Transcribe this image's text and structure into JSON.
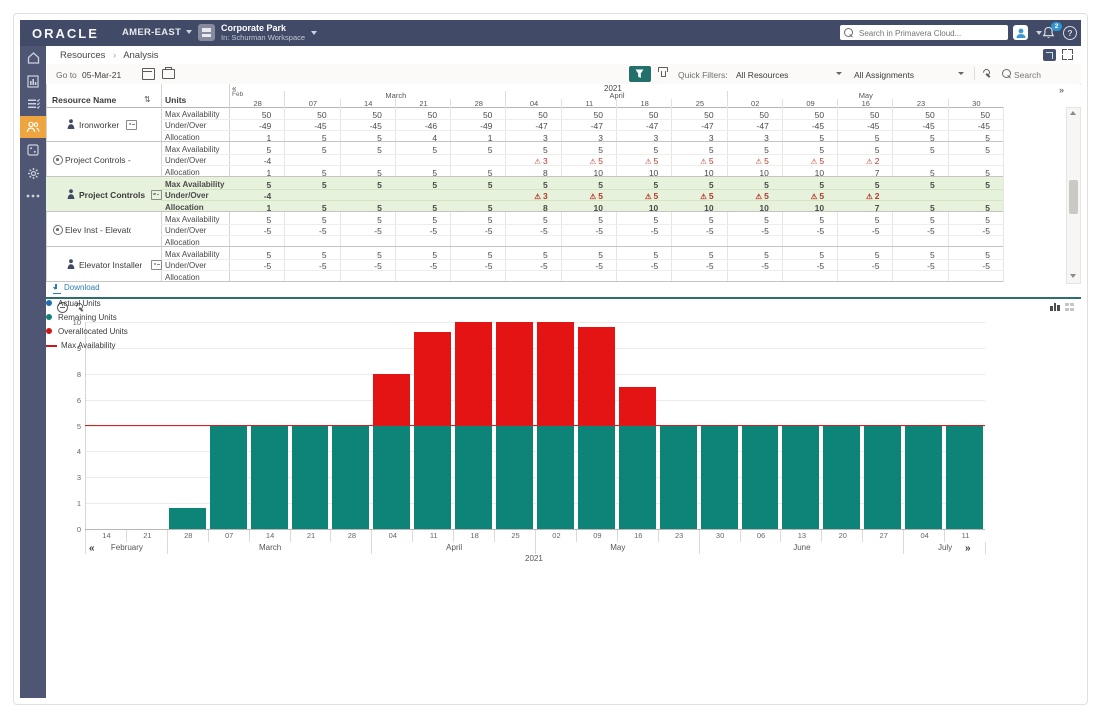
{
  "header": {
    "logo": "ORACLE",
    "org": "AMER-EAST",
    "workspace_title": "Corporate Park",
    "workspace_subtitle": "In: Schurman Workspace",
    "search_placeholder": "Search in Primavera Cloud...",
    "notification_count": "2",
    "help_label": "?"
  },
  "breadcrumb": {
    "items": [
      "Resources",
      "Analysis"
    ],
    "separator": "›"
  },
  "nav": {
    "back": "«",
    "forward": "»"
  },
  "toolbar": {
    "goto_label": "Go to",
    "goto_date": "05-Mar-21",
    "quick_filters_label": "Quick Filters:",
    "resources_filter": "All Resources",
    "assignments_filter": "All Assignments",
    "search_label": "Search"
  },
  "table": {
    "resource_col": "Resource Name",
    "units_col": "Units",
    "year": "2021",
    "edge_month": "Feb",
    "months": [
      {
        "label": "",
        "span": 1
      },
      {
        "label": "March",
        "span": 4
      },
      {
        "label": "April",
        "span": 4
      },
      {
        "label": "May",
        "span": 5
      }
    ],
    "dates": [
      "28",
      "07",
      "14",
      "21",
      "28",
      "04",
      "11",
      "18",
      "25",
      "02",
      "09",
      "16",
      "23",
      "30"
    ],
    "row_labels": [
      "Max Availability",
      "Under/Over",
      "Allocation"
    ],
    "resources": [
      {
        "name": "Ironworker",
        "kind": "resource",
        "selected": false,
        "max": [
          "50",
          "50",
          "50",
          "50",
          "50",
          "50",
          "50",
          "50",
          "50",
          "50",
          "50",
          "50",
          "50",
          "50"
        ],
        "under": [
          "-49",
          "-45",
          "-45",
          "-46",
          "-49",
          "-47",
          "-47",
          "-47",
          "-47",
          "-47",
          "-45",
          "-45",
          "-45",
          "-45"
        ],
        "alloc": [
          "1",
          "5",
          "5",
          "4",
          "1",
          "3",
          "3",
          "3",
          "3",
          "3",
          "5",
          "5",
          "5",
          "5"
        ]
      },
      {
        "name": "Project Controls - Project Co...",
        "kind": "role",
        "selected": false,
        "max": [
          "5",
          "5",
          "5",
          "5",
          "5",
          "5",
          "5",
          "5",
          "5",
          "5",
          "5",
          "5",
          "5",
          "5"
        ],
        "under": [
          "-4",
          "",
          "",
          "",
          "",
          "!3",
          "!5",
          "!5",
          "!5",
          "!5",
          "!5",
          "!2",
          "",
          ""
        ],
        "alloc": [
          "1",
          "5",
          "5",
          "5",
          "5",
          "8",
          "10",
          "10",
          "10",
          "10",
          "10",
          "7",
          "5",
          "5"
        ]
      },
      {
        "name": "Project Controls",
        "kind": "resource",
        "selected": true,
        "max": [
          "5",
          "5",
          "5",
          "5",
          "5",
          "5",
          "5",
          "5",
          "5",
          "5",
          "5",
          "5",
          "5",
          "5"
        ],
        "under": [
          "-4",
          "",
          "",
          "",
          "",
          "!3",
          "!5",
          "!5",
          "!5",
          "!5",
          "!5",
          "!2",
          "",
          ""
        ],
        "alloc": [
          "1",
          "5",
          "5",
          "5",
          "5",
          "8",
          "10",
          "10",
          "10",
          "10",
          "10",
          "7",
          "5",
          "5"
        ]
      },
      {
        "name": "Elev Inst - Elevator Installer",
        "kind": "role",
        "selected": false,
        "max": [
          "5",
          "5",
          "5",
          "5",
          "5",
          "5",
          "5",
          "5",
          "5",
          "5",
          "5",
          "5",
          "5",
          "5"
        ],
        "under": [
          "-5",
          "-5",
          "-5",
          "-5",
          "-5",
          "-5",
          "-5",
          "-5",
          "-5",
          "-5",
          "-5",
          "-5",
          "-5",
          "-5"
        ],
        "alloc": [
          "",
          "",
          "",
          "",
          "",
          "",
          "",
          "",
          "",
          "",
          "",
          "",
          "",
          ""
        ]
      },
      {
        "name": "Elevator Installer",
        "kind": "resource",
        "selected": false,
        "max": [
          "5",
          "5",
          "5",
          "5",
          "5",
          "5",
          "5",
          "5",
          "5",
          "5",
          "5",
          "5",
          "5",
          "5"
        ],
        "under": [
          "-5",
          "-5",
          "-5",
          "-5",
          "-5",
          "-5",
          "-5",
          "-5",
          "-5",
          "-5",
          "-5",
          "-5",
          "-5",
          "-5"
        ],
        "alloc": [
          "",
          "",
          "",
          "",
          "",
          "",
          "",
          "",
          "",
          "",
          "",
          "",
          "",
          ""
        ]
      }
    ]
  },
  "download_label": "Download",
  "chart_data": {
    "type": "bar",
    "stacked": true,
    "title": "",
    "year_label": "2021",
    "x": [
      "14",
      "21",
      "28",
      "07",
      "14",
      "21",
      "28",
      "04",
      "11",
      "18",
      "25",
      "02",
      "09",
      "16",
      "23",
      "30",
      "06",
      "13",
      "20",
      "27",
      "04",
      "11"
    ],
    "month_groups": [
      {
        "label": "February",
        "span": 2
      },
      {
        "label": "March",
        "span": 5
      },
      {
        "label": "April",
        "span": 4
      },
      {
        "label": "May",
        "span": 4
      },
      {
        "label": "June",
        "span": 5
      },
      {
        "label": "July",
        "span": 2
      }
    ],
    "series": [
      {
        "name": "Remaining Units",
        "color": "#0e8479",
        "values": [
          0,
          0,
          0.8,
          5,
          5,
          5,
          5,
          5,
          5,
          5,
          5,
          5,
          5,
          5,
          5,
          5,
          5,
          5,
          5,
          5,
          5,
          5
        ]
      },
      {
        "name": "Overallocated Units",
        "color": "#e51414",
        "values": [
          0,
          0,
          0,
          0,
          0,
          0,
          0,
          3,
          4.6,
          5,
          5,
          5,
          4.8,
          2,
          0,
          0,
          0,
          0,
          0,
          0,
          0,
          0
        ]
      },
      {
        "name": "Actual Units",
        "color": "#1c6fb0",
        "values": [
          0,
          0,
          0,
          0,
          0,
          0,
          0,
          0,
          0,
          0,
          0,
          0,
          0,
          0,
          0,
          0,
          0,
          0,
          0,
          0,
          0,
          0
        ]
      }
    ],
    "max_availability": {
      "label": "Max Availability",
      "color": "#d42020",
      "value": 5
    },
    "y_ticks": [
      0,
      1,
      3,
      4,
      5,
      6,
      8,
      9,
      10
    ],
    "ylim": [
      0,
      10
    ],
    "grid": true,
    "legend_position": "right"
  },
  "legend": [
    {
      "label": "Actual Units",
      "color": "#1c6fb0",
      "shape": "dot"
    },
    {
      "label": "Remaining Units",
      "color": "#0e8479",
      "shape": "dot"
    },
    {
      "label": "Overallocated Units",
      "color": "#cf1717",
      "shape": "dot"
    },
    {
      "label": "Max Availability",
      "color": "#cf1717",
      "shape": "line"
    }
  ]
}
